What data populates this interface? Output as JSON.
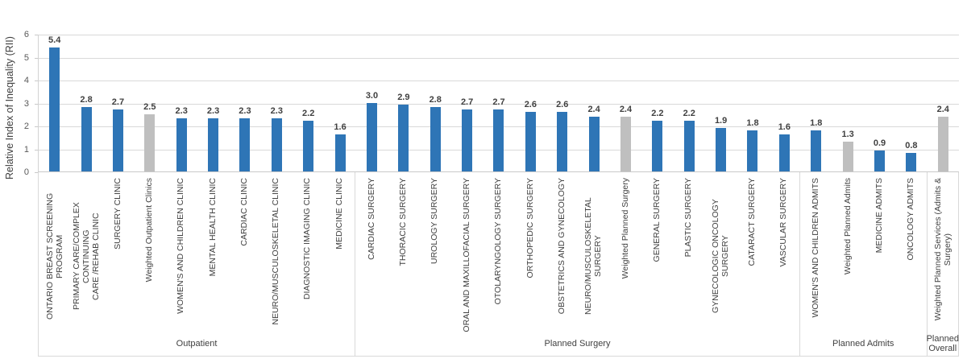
{
  "chart_data": {
    "type": "bar",
    "title": "",
    "xlabel": "",
    "ylabel": "Relative Index of Inequality (RII)",
    "ylim": [
      0,
      6
    ],
    "yticks": [
      0,
      1,
      2,
      3,
      4,
      5,
      6
    ],
    "grid": "horizontal",
    "legend": "none",
    "value_label_format": "one-decimal",
    "colors": {
      "primary": "#2E75B6",
      "weighted": "#BFBFBF",
      "gridline": "#D9D9D9",
      "label_text": "#404040"
    },
    "groups": [
      {
        "label": "Outpatient",
        "items": [
          {
            "label": "ONTARIO BREAST SCREENING PROGRAM",
            "value": 5.4,
            "type": "primary"
          },
          {
            "label": "PRIMARY CARE/COMPLEX CONTINUING\nCARE /REHAB CLINIC",
            "value": 2.8,
            "type": "primary"
          },
          {
            "label": "SURGERY CLINIC",
            "value": 2.7,
            "type": "primary"
          },
          {
            "label": "Weighted Outpatient Clinics",
            "value": 2.5,
            "type": "weighted"
          },
          {
            "label": "WOMEN'S AND CHILDREN CLINIC",
            "value": 2.3,
            "type": "primary"
          },
          {
            "label": "MENTAL HEALTH CLINIC",
            "value": 2.3,
            "type": "primary"
          },
          {
            "label": "CARDIAC CLINIC",
            "value": 2.3,
            "type": "primary"
          },
          {
            "label": "NEURO/MUSCULOSKELETAL CLINIC",
            "value": 2.3,
            "type": "primary"
          },
          {
            "label": "DIAGNOSTIC IMAGING CLINIC",
            "value": 2.2,
            "type": "primary"
          },
          {
            "label": "MEDICINE CLINIC",
            "value": 1.6,
            "type": "primary"
          }
        ]
      },
      {
        "label": "Planned Surgery",
        "items": [
          {
            "label": "CARDIAC SURGERY",
            "value": 3.0,
            "type": "primary"
          },
          {
            "label": "THORACIC SURGERY",
            "value": 2.9,
            "type": "primary"
          },
          {
            "label": "UROLOGY SURGERY",
            "value": 2.8,
            "type": "primary"
          },
          {
            "label": "ORAL AND MAXILLOFACIAL SURGERY",
            "value": 2.7,
            "type": "primary"
          },
          {
            "label": "OTOLARYNGOLOGY SURGERY",
            "value": 2.7,
            "type": "primary"
          },
          {
            "label": "ORTHOPEDIC SURGERY",
            "value": 2.6,
            "type": "primary"
          },
          {
            "label": "OBSTETRICS AND GYNECOLOGY",
            "value": 2.6,
            "type": "primary"
          },
          {
            "label": "NEURO/MUSCULOSKELETAL SURGERY",
            "value": 2.4,
            "type": "primary"
          },
          {
            "label": "Weighted Planned Surgery",
            "value": 2.4,
            "type": "weighted"
          },
          {
            "label": "GENERAL SURGERY",
            "value": 2.2,
            "type": "primary"
          },
          {
            "label": "PLASTIC SURGERY",
            "value": 2.2,
            "type": "primary"
          },
          {
            "label": "GYNECOLOGIC ONCOLOGY SURGERY",
            "value": 1.9,
            "type": "primary"
          },
          {
            "label": "CATARACT SURGERY",
            "value": 1.8,
            "type": "primary"
          },
          {
            "label": "VASCULAR SURGERY",
            "value": 1.6,
            "type": "primary"
          }
        ]
      },
      {
        "label": "Planned Admits",
        "items": [
          {
            "label": "WOMEN'S AND CHILDREN ADMITS",
            "value": 1.8,
            "type": "primary"
          },
          {
            "label": "Weighted Planned Admits",
            "value": 1.3,
            "type": "weighted"
          },
          {
            "label": "MEDICINE ADMITS",
            "value": 0.9,
            "type": "primary"
          },
          {
            "label": "ONCOLOGY ADMITS",
            "value": 0.8,
            "type": "primary"
          }
        ]
      },
      {
        "label": "Planned Overall",
        "items": [
          {
            "label": "Weighted Planned Services (Admits &\nSurgery)",
            "value": 2.4,
            "type": "weighted"
          }
        ]
      }
    ]
  }
}
